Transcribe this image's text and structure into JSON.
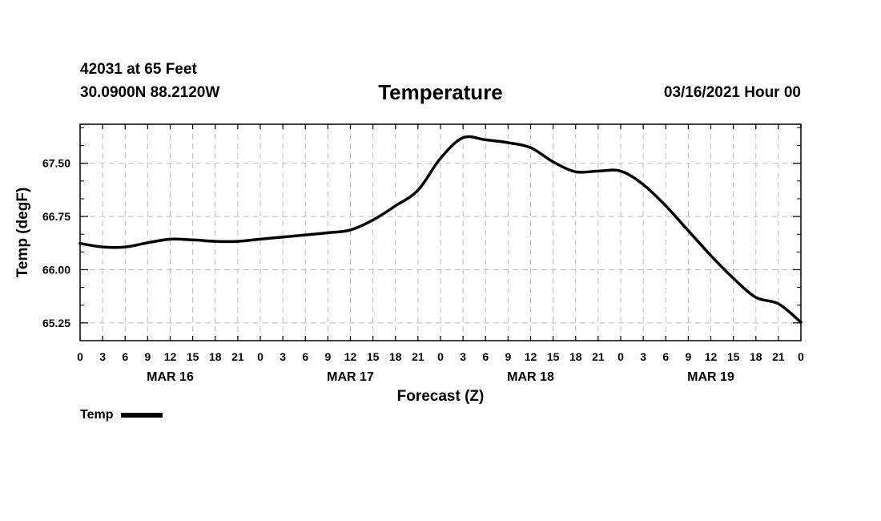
{
  "chart_data": {
    "type": "line",
    "header": {
      "station": "42031 at 65 Feet",
      "coords": "30.0900N 88.2120W",
      "title": "Temperature",
      "datetime": "03/16/2021 Hour 00"
    },
    "xlabel": "Forecast (Z)",
    "ylabel": "Temp (degF)",
    "xlim": [
      0,
      96
    ],
    "ylim": [
      65.0,
      68.05
    ],
    "y_ticks": [
      65.25,
      66.0,
      66.75,
      67.5
    ],
    "y_tick_labels": [
      "65.25",
      "66.00",
      "66.75",
      "67.50"
    ],
    "x_ticks": [
      0,
      3,
      6,
      9,
      12,
      15,
      18,
      21,
      24,
      27,
      30,
      33,
      36,
      39,
      42,
      45,
      48,
      51,
      54,
      57,
      60,
      63,
      66,
      69,
      72,
      75,
      78,
      81,
      84,
      87,
      90,
      93,
      96
    ],
    "x_tick_labels": [
      "0",
      "3",
      "6",
      "9",
      "12",
      "15",
      "18",
      "21",
      "0",
      "3",
      "6",
      "9",
      "12",
      "15",
      "18",
      "21",
      "0",
      "3",
      "6",
      "9",
      "12",
      "15",
      "18",
      "21",
      "0",
      "3",
      "6",
      "9",
      "12",
      "15",
      "18",
      "21",
      "0"
    ],
    "date_labels": [
      {
        "label": "MAR 16",
        "x": 12
      },
      {
        "label": "MAR 17",
        "x": 36
      },
      {
        "label": "MAR 18",
        "x": 60
      },
      {
        "label": "MAR 19",
        "x": 84
      }
    ],
    "grid": true,
    "legend": {
      "label": "Temp",
      "position": "bottom-left"
    },
    "series": [
      {
        "name": "Temp",
        "x": [
          0,
          3,
          6,
          9,
          12,
          15,
          18,
          21,
          24,
          27,
          30,
          33,
          36,
          39,
          42,
          45,
          48,
          51,
          54,
          57,
          60,
          63,
          66,
          69,
          72,
          75,
          78,
          81,
          84,
          87,
          90,
          93,
          96
        ],
        "values": [
          66.37,
          66.32,
          66.32,
          66.38,
          66.43,
          66.42,
          66.4,
          66.4,
          66.43,
          66.46,
          66.49,
          66.52,
          66.56,
          66.7,
          66.9,
          67.12,
          67.57,
          67.86,
          67.83,
          67.79,
          67.72,
          67.52,
          67.38,
          67.39,
          67.39,
          67.2,
          66.9,
          66.55,
          66.2,
          65.88,
          65.61,
          65.52,
          65.26
        ]
      }
    ]
  }
}
